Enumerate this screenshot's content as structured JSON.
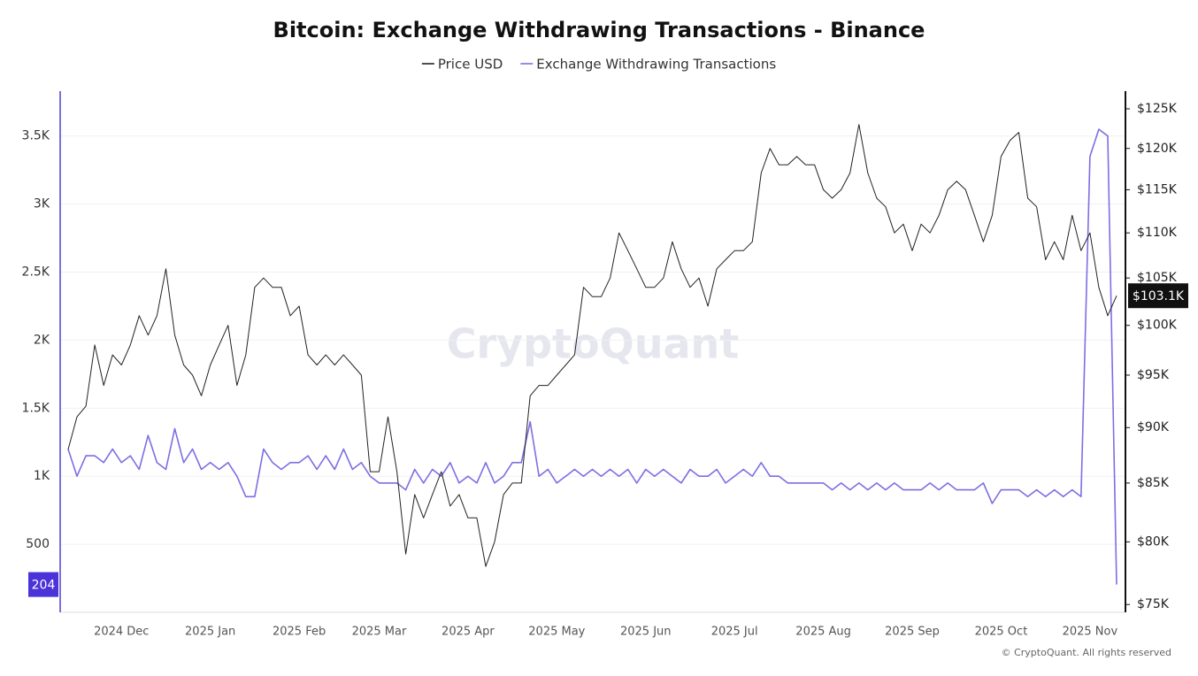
{
  "chart_data": {
    "type": "line",
    "title": "Bitcoin: Exchange Withdrawing Transactions - Binance",
    "watermark": "CryptoQuant",
    "footer": "© CryptoQuant. All rights reserved",
    "legend": "top",
    "grid": true,
    "categories": [
      null,
      null,
      null,
      null,
      null,
      null,
      "2024 Dec",
      null,
      null,
      null,
      null,
      null,
      null,
      null,
      null,
      null,
      "2025 Jan",
      null,
      null,
      null,
      null,
      null,
      null,
      null,
      null,
      null,
      "2025 Feb",
      null,
      null,
      null,
      null,
      null,
      null,
      null,
      null,
      "2025 Mar",
      null,
      null,
      null,
      null,
      null,
      null,
      null,
      null,
      null,
      "2025 Apr",
      null,
      null,
      null,
      null,
      null,
      null,
      null,
      null,
      null,
      "2025 May",
      null,
      null,
      null,
      null,
      null,
      null,
      null,
      null,
      null,
      "2025 Jun",
      null,
      null,
      null,
      null,
      null,
      null,
      null,
      null,
      null,
      "2025 Jul",
      null,
      null,
      null,
      null,
      null,
      null,
      null,
      null,
      null,
      "2025 Aug",
      null,
      null,
      null,
      null,
      null,
      null,
      null,
      null,
      null,
      "2025 Sep",
      null,
      null,
      null,
      null,
      null,
      null,
      null,
      null,
      null,
      "2025 Oct",
      null,
      null,
      null,
      null,
      null,
      null,
      null,
      null,
      null,
      "2025 Nov",
      null,
      null,
      null
    ],
    "series": [
      {
        "name": "Price USD",
        "color": "#222222",
        "axis": "y2",
        "values": [
          88000,
          91000,
          92000,
          98000,
          94000,
          97000,
          96000,
          98000,
          101000,
          99000,
          101000,
          106000,
          99000,
          96000,
          95000,
          93000,
          96000,
          98000,
          100000,
          94000,
          97000,
          104000,
          105000,
          104000,
          104000,
          101000,
          102000,
          97000,
          96000,
          97000,
          96000,
          97000,
          96000,
          95000,
          86000,
          86000,
          91000,
          86000,
          79000,
          84000,
          82000,
          84000,
          86000,
          83000,
          84000,
          82000,
          82000,
          78000,
          80000,
          84000,
          85000,
          85000,
          93000,
          94000,
          94000,
          95000,
          96000,
          97000,
          104000,
          103000,
          103000,
          105000,
          110000,
          108000,
          106000,
          104000,
          104000,
          105000,
          109000,
          106000,
          104000,
          105000,
          102000,
          106000,
          107000,
          108000,
          108000,
          109000,
          117000,
          120000,
          118000,
          118000,
          119000,
          118000,
          118000,
          115000,
          114000,
          115000,
          117000,
          123000,
          117000,
          114000,
          113000,
          110000,
          111000,
          108000,
          111000,
          110000,
          112000,
          115000,
          116000,
          115000,
          112000,
          109000,
          112000,
          119000,
          121000,
          122000,
          114000,
          113000,
          107000,
          109000,
          107000,
          112000,
          108000,
          110000,
          104000,
          101000,
          103100
        ]
      },
      {
        "name": "Exchange Withdrawing Transactions",
        "color": "#7c6fe3",
        "values": [
          1200,
          1000,
          1150,
          1150,
          1100,
          1200,
          1100,
          1150,
          1050,
          1300,
          1100,
          1050,
          1350,
          1100,
          1200,
          1050,
          1100,
          1050,
          1100,
          1000,
          850,
          850,
          1200,
          1100,
          1050,
          1100,
          1100,
          1150,
          1050,
          1150,
          1050,
          1200,
          1050,
          1100,
          1000,
          950,
          950,
          950,
          900,
          1050,
          950,
          1050,
          1000,
          1100,
          950,
          1000,
          950,
          1100,
          950,
          1000,
          1100,
          1100,
          1400,
          1000,
          1050,
          950,
          1000,
          1050,
          1000,
          1050,
          1000,
          1050,
          1000,
          1050,
          950,
          1050,
          1000,
          1050,
          1000,
          950,
          1050,
          1000,
          1000,
          1050,
          950,
          1000,
          1050,
          1000,
          1100,
          1000,
          1000,
          950,
          950,
          950,
          950,
          950,
          900,
          950,
          900,
          950,
          900,
          950,
          900,
          950,
          900,
          900,
          900,
          950,
          900,
          950,
          900,
          900,
          900,
          950,
          800,
          900,
          900,
          900,
          850,
          900,
          850,
          900,
          850,
          900,
          850,
          3350,
          3550,
          3500,
          204
        ]
      }
    ],
    "ylim": [
      0,
      3830
    ],
    "yticks": [
      {
        "value": 500,
        "label": "500"
      },
      {
        "value": 1000,
        "label": "1K"
      },
      {
        "value": 1500,
        "label": "1.5K"
      },
      {
        "value": 2000,
        "label": "2K"
      },
      {
        "value": 2500,
        "label": "2.5K"
      },
      {
        "value": 3000,
        "label": "3K"
      },
      {
        "value": 3500,
        "label": "3.5K"
      }
    ],
    "y2scale": "log",
    "y2lim": [
      74400,
      127300
    ],
    "y2ticks": [
      {
        "value": 75000,
        "label": "$75K"
      },
      {
        "value": 80000,
        "label": "$80K"
      },
      {
        "value": 85000,
        "label": "$85K"
      },
      {
        "value": 90000,
        "label": "$90K"
      },
      {
        "value": 95000,
        "label": "$95K"
      },
      {
        "value": 100000,
        "label": "$100K"
      },
      {
        "value": 105000,
        "label": "$105K"
      },
      {
        "value": 110000,
        "label": "$110K"
      },
      {
        "value": 115000,
        "label": "$115K"
      },
      {
        "value": 120000,
        "label": "$120K"
      },
      {
        "value": 125000,
        "label": "$125K"
      }
    ],
    "annotations": [
      {
        "label": "204",
        "value": 204,
        "axis": "y",
        "color": "#4a33d9"
      },
      {
        "label": "$103.1K",
        "value": 103100,
        "axis": "y2",
        "color": "#111111"
      }
    ]
  }
}
